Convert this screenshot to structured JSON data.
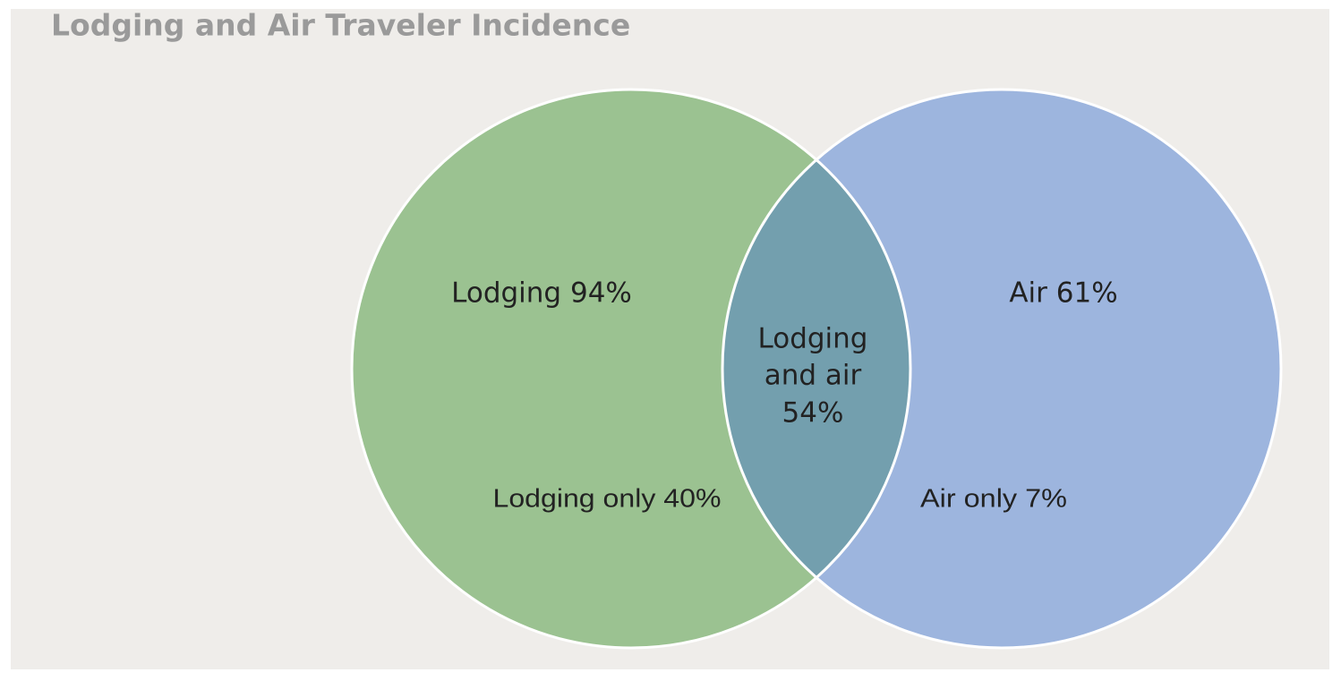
{
  "title": "Lodging and Air Traveler Incidence",
  "sets": [
    {
      "label": "Lodging 94%",
      "only_label": "Lodging only 40%"
    },
    {
      "label": "Air 61%",
      "only_label": "Air only 7%"
    }
  ],
  "intersection": {
    "lines": [
      "Lodging",
      "and air",
      "54%"
    ]
  }
}
